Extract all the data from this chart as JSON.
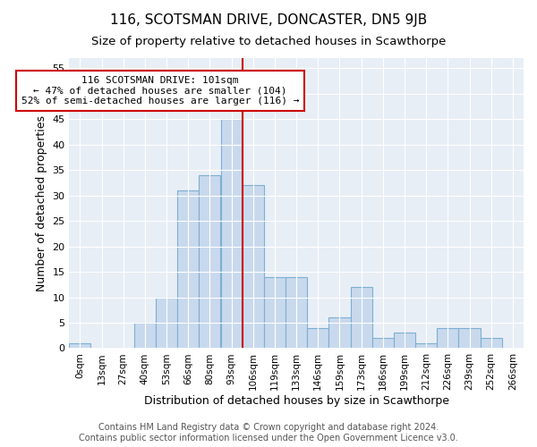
{
  "title": "116, SCOTSMAN DRIVE, DONCASTER, DN5 9JB",
  "subtitle": "Size of property relative to detached houses in Scawthorpe",
  "xlabel": "Distribution of detached houses by size in Scawthorpe",
  "ylabel": "Number of detached properties",
  "bin_labels": [
    "0sqm",
    "13sqm",
    "27sqm",
    "40sqm",
    "53sqm",
    "66sqm",
    "80sqm",
    "93sqm",
    "106sqm",
    "119sqm",
    "133sqm",
    "146sqm",
    "159sqm",
    "173sqm",
    "186sqm",
    "199sqm",
    "212sqm",
    "226sqm",
    "239sqm",
    "252sqm",
    "266sqm"
  ],
  "bar_values": [
    1,
    0,
    0,
    5,
    10,
    31,
    34,
    45,
    32,
    14,
    14,
    4,
    6,
    12,
    2,
    3,
    1,
    4,
    4,
    2,
    0
  ],
  "bar_color": "#c9d9ed",
  "bar_edge_color": "#7bafd4",
  "vline_x": 7.5,
  "vline_color": "#cc0000",
  "annotation_line1": "116 SCOTSMAN DRIVE: 101sqm",
  "annotation_line2": "← 47% of detached houses are smaller (104)",
  "annotation_line3": "52% of semi-detached houses are larger (116) →",
  "annotation_box_color": "#ffffff",
  "annotation_box_edge": "#cc0000",
  "ylim": [
    0,
    57
  ],
  "yticks": [
    0,
    5,
    10,
    15,
    20,
    25,
    30,
    35,
    40,
    45,
    50,
    55
  ],
  "bg_color": "#ffffff",
  "plot_bg_color": "#e8eef5",
  "grid_color": "#ffffff",
  "footer_line1": "Contains HM Land Registry data © Crown copyright and database right 2024.",
  "footer_line2": "Contains public sector information licensed under the Open Government Licence v3.0.",
  "title_fontsize": 11,
  "subtitle_fontsize": 9.5,
  "footer_fontsize": 7,
  "ylabel_fontsize": 9,
  "xlabel_fontsize": 9
}
